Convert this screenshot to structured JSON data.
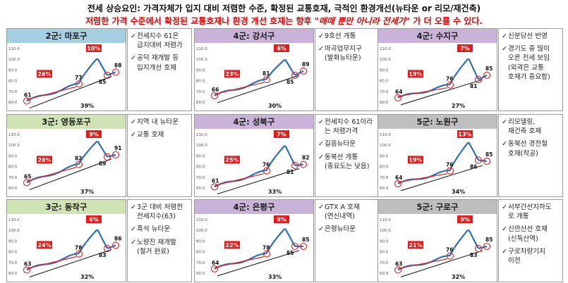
{
  "header": {
    "title": "전세 상승요인: 가격자체가 입지 대비 저렴한 수준, 확정된 교통호재, 극적인 환경개선(뉴타운 or 리모/재건축)",
    "subtitle_main": "저렴한 가격 수준에서 확정된 교통호재나 환경 개선 호재는 향후 ",
    "subtitle_em": "\"매매 뿐만 아니라 전세가\"",
    "subtitle_end": " 가 더 오를 수 있다."
  },
  "colors": {
    "group2": "#a6d0e2",
    "group3": "#cfe3b4",
    "group4": "#c9b3d9",
    "group5": "#bfbfbf",
    "line": "#2f6fb8",
    "accent": "#e31b1b"
  },
  "chart_data": [
    {
      "type": "line",
      "title": "2군: 마포구",
      "group": "group2",
      "ylim": [
        60,
        110
      ],
      "yticks": [
        "110.0",
        "100.0",
        "90.0",
        "80.0",
        "70.0",
        "60.0"
      ],
      "labels": {
        "low": "61",
        "mid": "77",
        "peak_drop": "85",
        "end": "88"
      },
      "low": 61,
      "mid": 77,
      "peak": 101,
      "dip": 85,
      "end": 88,
      "rise1": "26%",
      "rise2": "10%",
      "total": "39%"
    },
    {
      "type": "line",
      "title": "4군: 강서구",
      "group": "group4",
      "ylim": [
        60,
        110
      ],
      "yticks": [
        "110.0",
        "100.0",
        "90.0",
        "80.0",
        "70.0",
        "60.0"
      ],
      "labels": {
        "low": "66",
        "mid": "81",
        "peak_drop": "85",
        "end": "89"
      },
      "low": 66,
      "mid": 81,
      "peak": 100,
      "dip": 85,
      "end": 89,
      "rise1": "23%",
      "rise2": "6%",
      "total": "30%"
    },
    {
      "type": "line",
      "title": "4군: 수지구",
      "group": "group4",
      "ylim": [
        60,
        110
      ],
      "yticks": [
        "110.0",
        "100.0",
        "90.0",
        "80.0",
        "70.0",
        "60.0"
      ],
      "labels": {
        "low": "64",
        "mid": "76",
        "peak_drop": "81",
        "end": "85"
      },
      "low": 64,
      "mid": 76,
      "peak": 101,
      "dip": 81,
      "end": 85,
      "rise1": "19%",
      "rise2": "7%",
      "total": "27%"
    },
    {
      "type": "line",
      "title": "3군: 영등포구",
      "group": "group3",
      "ylim": [
        60,
        110
      ],
      "yticks": [
        "110.0",
        "100.0",
        "90.0",
        "80.0",
        "70.0",
        "60.0"
      ],
      "labels": {
        "low": "65",
        "mid": "82",
        "peak_drop": "89",
        "end": "91"
      },
      "low": 65,
      "mid": 82,
      "peak": 104,
      "dip": 89,
      "end": 91,
      "rise1": "26%",
      "rise2": "9%",
      "total": "37%"
    },
    {
      "type": "line",
      "title": "4군: 성북구",
      "group": "group4",
      "ylim": [
        60,
        110
      ],
      "yticks": [
        "110.0",
        "100.0",
        "90.0",
        "80.0",
        "70.0",
        "60.0"
      ],
      "labels": {
        "low": "61",
        "mid": "76",
        "peak_drop": "81",
        "end": "82"
      },
      "low": 61,
      "mid": 76,
      "peak": 100,
      "dip": 81,
      "end": 82,
      "rise1": "25%",
      "rise2": "7%",
      "total": "33%"
    },
    {
      "type": "line",
      "title": "5군: 노원구",
      "group": "group5",
      "ylim": [
        60,
        110
      ],
      "yticks": [
        "110.0",
        "100.0",
        "90.0",
        "80.0",
        "70.0",
        "60.0"
      ],
      "labels": {
        "low": "64",
        "mid": "76",
        "peak_drop": "86",
        "end": "85"
      },
      "low": 64,
      "mid": 76,
      "peak": 103,
      "dip": 86,
      "end": 85,
      "rise1": "19%",
      "rise2": "13%",
      "total": "34%"
    },
    {
      "type": "line",
      "title": "3군: 동작구",
      "group": "group3",
      "ylim": [
        60,
        110
      ],
      "yticks": [
        "110.0",
        "100.0",
        "90.0",
        "80.0",
        "70.0",
        "60.0"
      ],
      "labels": {
        "low": "63",
        "mid": "78",
        "peak_drop": "83",
        "end": "86"
      },
      "low": 63,
      "mid": 78,
      "peak": 101,
      "dip": 83,
      "end": 86,
      "rise1": "24%",
      "rise2": "6%",
      "total": "32%"
    },
    {
      "type": "line",
      "title": "4군: 은평구",
      "group": "group4",
      "ylim": [
        60,
        110
      ],
      "yticks": [
        "110.0",
        "100.0",
        "90.0",
        "80.0",
        "70.0",
        "60.0"
      ],
      "labels": {
        "low": "64",
        "mid": "78",
        "peak_drop": "85",
        "end": "85"
      },
      "low": 64,
      "mid": 78,
      "peak": 102,
      "dip": 85,
      "end": 85,
      "rise1": "22%",
      "rise2": "9%",
      "total": "33%"
    },
    {
      "type": "line",
      "title": "5군: 구로구",
      "group": "group5",
      "ylim": [
        60,
        110
      ],
      "yticks": [
        "110.0",
        "100.0",
        "90.0",
        "80.0",
        "70.0",
        "60.0"
      ],
      "labels": {
        "low": "63",
        "mid": "76",
        "peak_drop": "83",
        "end": "85"
      },
      "low": 63,
      "mid": 76,
      "peak": 101,
      "dip": 83,
      "end": 85,
      "rise1": "21%",
      "rise2": "9%",
      "total": "32%"
    }
  ],
  "notes": [
    [
      "전세지수 61은\n급지대비 저렴가",
      "공덕 재개발 등\n입지개선 호재"
    ],
    [
      "9호선 개통",
      "마곡업무지구\n(발화뉴타운)"
    ],
    [
      "신분당선 반영",
      "경기도 중 많이\n오른 전세 보임\n(외곽은 교통\n호재가 중요함)"
    ],
    [
      "지역 내 뉴타운",
      "교통 호재"
    ],
    [
      "전세지수 61이라\n는 저렴가격",
      "길음뉴타운",
      "동북선 개통\n(중요도는 낮음)"
    ],
    [
      "리모델링,\n재건축 호재",
      "동북선 경전철\n호재(착공)"
    ],
    [
      "3군 대비 저렴한\n전세지수(63)",
      "흑석 뉴타운",
      "노량진 재개발\n(철거 완료)"
    ],
    [
      "GTX A 호재\n(연신내역)",
      "은평뉴타운"
    ],
    [
      "서부간선지하도\n로 개통",
      "신안산선 호재\n(신독산역)",
      "구로차량기지\n이전"
    ]
  ],
  "check_mark": "✓"
}
